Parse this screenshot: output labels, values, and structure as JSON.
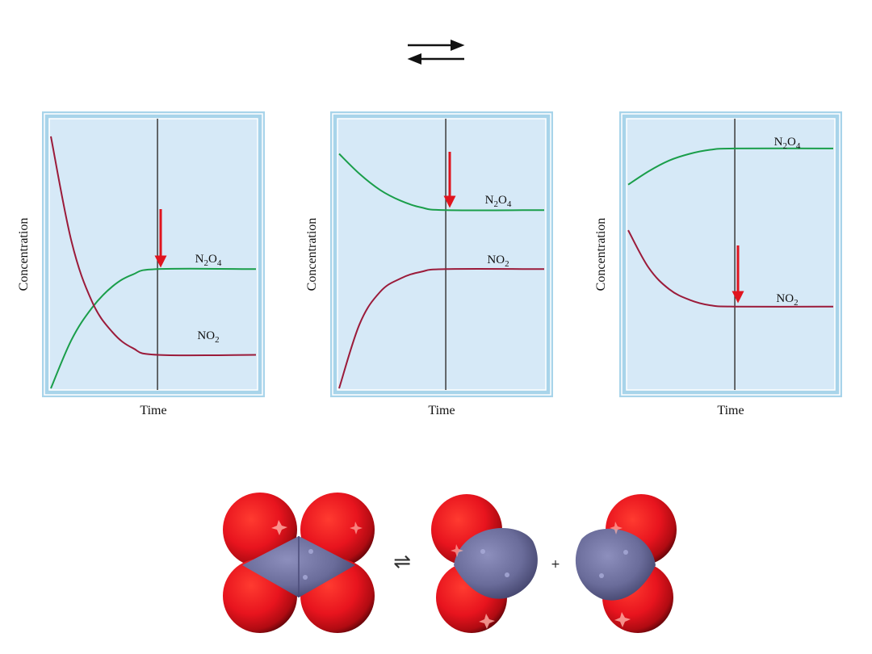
{
  "chart_data": [
    {
      "type": "line",
      "xlabel": "Time",
      "ylabel": "Concentration",
      "marker_time": 0.52,
      "series": [
        {
          "name": "N2O4",
          "color": "#1a9e4a",
          "points": [
            [
              0,
              0.0
            ],
            [
              0.1,
              0.36
            ],
            [
              0.2,
              0.6
            ],
            [
              0.3,
              0.76
            ],
            [
              0.4,
              0.85
            ],
            [
              0.52,
              0.89
            ],
            [
              1.0,
              0.89
            ]
          ]
        },
        {
          "name": "NO2",
          "color": "#9b1b3a",
          "points": [
            [
              0,
              1.88
            ],
            [
              0.1,
              1.1
            ],
            [
              0.2,
              0.65
            ],
            [
              0.3,
              0.42
            ],
            [
              0.4,
              0.3
            ],
            [
              0.52,
              0.25
            ],
            [
              1.0,
              0.25
            ]
          ]
        }
      ],
      "labels": [
        {
          "series": "N2O4",
          "text_main": "N",
          "sub1": "2",
          "mid": "O",
          "sub2": "4"
        },
        {
          "series": "NO2",
          "text_main": "NO",
          "sub1": "2"
        }
      ]
    },
    {
      "type": "line",
      "xlabel": "Time",
      "ylabel": "Concentration",
      "marker_time": 0.52,
      "series": [
        {
          "name": "N2O4",
          "color": "#1a9e4a",
          "points": [
            [
              0,
              1.75
            ],
            [
              0.1,
              1.6
            ],
            [
              0.2,
              1.48
            ],
            [
              0.3,
              1.4
            ],
            [
              0.4,
              1.35
            ],
            [
              0.52,
              1.33
            ],
            [
              1.0,
              1.33
            ]
          ]
        },
        {
          "name": "NO2",
          "color": "#9b1b3a",
          "points": [
            [
              0,
              0.0
            ],
            [
              0.1,
              0.48
            ],
            [
              0.2,
              0.72
            ],
            [
              0.3,
              0.82
            ],
            [
              0.4,
              0.87
            ],
            [
              0.52,
              0.89
            ],
            [
              1.0,
              0.89
            ]
          ]
        }
      ],
      "labels": [
        {
          "series": "N2O4",
          "text_main": "N",
          "sub1": "2",
          "mid": "O",
          "sub2": "4"
        },
        {
          "series": "NO2",
          "text_main": "NO",
          "sub1": "2"
        }
      ]
    },
    {
      "type": "line",
      "xlabel": "Time",
      "ylabel": "Concentration",
      "marker_time": 0.52,
      "series": [
        {
          "name": "N2O4",
          "color": "#1a9e4a",
          "points": [
            [
              0,
              1.52
            ],
            [
              0.1,
              1.62
            ],
            [
              0.2,
              1.7
            ],
            [
              0.3,
              1.75
            ],
            [
              0.4,
              1.78
            ],
            [
              0.52,
              1.79
            ],
            [
              1.0,
              1.79
            ]
          ]
        },
        {
          "name": "NO2",
          "color": "#9b1b3a",
          "points": [
            [
              0,
              1.18
            ],
            [
              0.1,
              0.9
            ],
            [
              0.2,
              0.74
            ],
            [
              0.3,
              0.66
            ],
            [
              0.4,
              0.62
            ],
            [
              0.52,
              0.61
            ],
            [
              1.0,
              0.61
            ]
          ]
        }
      ],
      "labels": [
        {
          "series": "N2O4",
          "text_main": "N",
          "sub1": "2",
          "mid": "O",
          "sub2": "4"
        },
        {
          "series": "NO2",
          "text_main": "NO",
          "sub1": "2"
        }
      ]
    }
  ],
  "molecules": {
    "plus": "+",
    "equilibrium_symbol": "⇌"
  },
  "colors": {
    "frame_outer": "#a8d4ea",
    "frame_inner": "#d4e8f6",
    "plot_bg": "#d6e9f7",
    "arrow": "#e0141e",
    "oxygen": "#e8141e",
    "nitrogen": "#6a6c9a"
  }
}
